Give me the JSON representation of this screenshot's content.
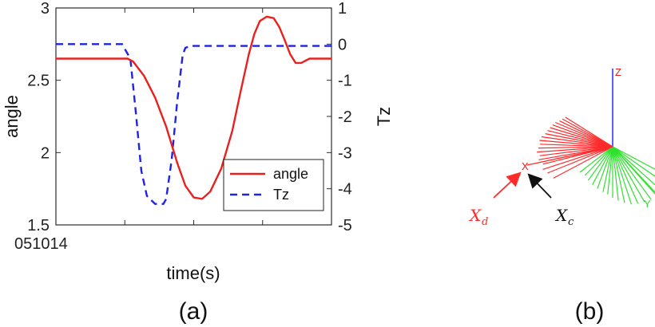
{
  "chart_data": [
    {
      "type": "line",
      "panel_label": "(a)",
      "xlabel": "time(s)",
      "x_origin_label": "051014",
      "ylabel_left": "angle",
      "ylabel_right": "Tz",
      "ylim_left": [
        1.5,
        3
      ],
      "ylim_right": [
        -5,
        1
      ],
      "yticks_left": [
        "1.5",
        "2",
        "2.5",
        "3"
      ],
      "yticks_right": [
        "-5",
        "-4",
        "-3",
        "-2",
        "-1",
        "0",
        "1"
      ],
      "xlim": [
        0,
        1
      ],
      "xticks_minor": [
        0.25,
        0.5,
        0.75
      ],
      "legend_position": "bottom-right",
      "series": [
        {
          "name": "angle",
          "axis": "left",
          "color": "#e8211e",
          "style": "solid",
          "x": [
            0,
            0.1,
            0.26,
            0.28,
            0.32,
            0.36,
            0.4,
            0.44,
            0.47,
            0.5,
            0.53,
            0.56,
            0.6,
            0.64,
            0.67,
            0.7,
            0.72,
            0.74,
            0.765,
            0.79,
            0.81,
            0.83,
            0.85,
            0.87,
            0.89,
            0.92,
            0.96,
            1.0
          ],
          "y": [
            2.65,
            2.65,
            2.65,
            2.63,
            2.53,
            2.38,
            2.18,
            1.93,
            1.77,
            1.69,
            1.68,
            1.73,
            1.89,
            2.15,
            2.42,
            2.68,
            2.82,
            2.91,
            2.94,
            2.93,
            2.87,
            2.78,
            2.68,
            2.62,
            2.62,
            2.65,
            2.65,
            2.65
          ]
        },
        {
          "name": "Tz",
          "axis": "right",
          "color": "#1f24e0",
          "style": "dashed",
          "x": [
            0,
            0.24,
            0.27,
            0.29,
            0.31,
            0.33,
            0.36,
            0.39,
            0.4,
            0.42,
            0.44,
            0.46,
            0.47,
            0.49,
            1.0
          ],
          "y": [
            0,
            0,
            -0.4,
            -1.9,
            -3.5,
            -4.2,
            -4.42,
            -4.42,
            -4.28,
            -3.2,
            -1.6,
            -0.3,
            -0.1,
            -0.05,
            -0.05
          ]
        }
      ]
    },
    {
      "type": "other",
      "panel_label": "(b)",
      "description": "3D pose fans",
      "axis_labels": {
        "z": "Z",
        "x": "X",
        "y": "Y"
      },
      "symbols": {
        "d": "X",
        "d_sub": "d",
        "c": "X",
        "c_sub": "c"
      },
      "colors": {
        "red": "#ff2a2a",
        "green": "#2fe02f",
        "blue": "#1a1aff",
        "black": "#111111"
      }
    }
  ]
}
